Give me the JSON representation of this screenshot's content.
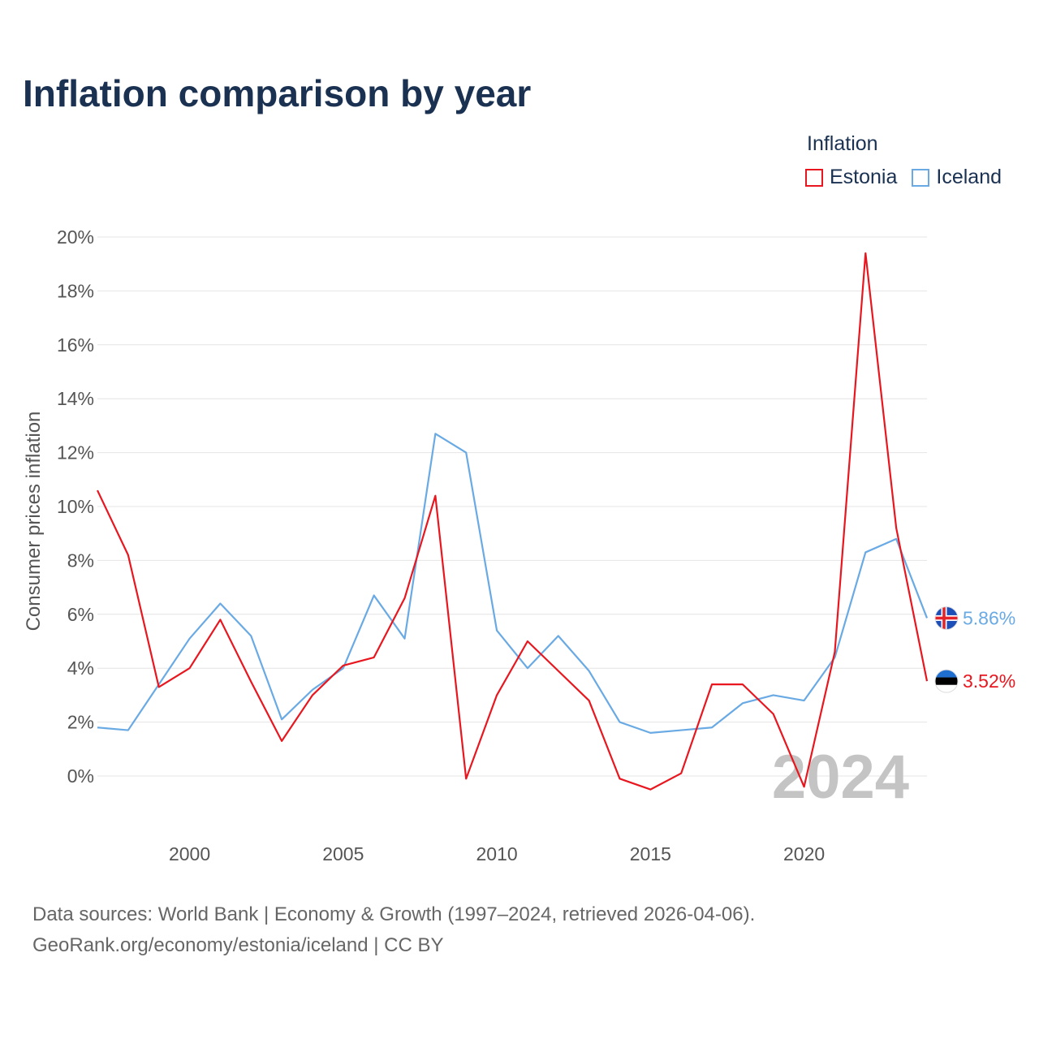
{
  "title": "Inflation comparison by year",
  "legend": {
    "title": "Inflation",
    "items": [
      {
        "label": "Estonia",
        "color": "#e8171f"
      },
      {
        "label": "Iceland",
        "color": "#6aaae4"
      }
    ]
  },
  "source": {
    "line1": "Data sources: World Bank | Economy & Growth (1997–2024, retrieved 2026-04-06).",
    "line2": "GeoRank.org/economy/estonia/iceland | CC BY"
  },
  "chart_data": {
    "type": "line",
    "title": "Inflation comparison by year",
    "xlabel": "",
    "ylabel": "Consumer prices inflation",
    "x": [
      1997,
      1998,
      1999,
      2000,
      2001,
      2002,
      2003,
      2004,
      2005,
      2006,
      2007,
      2008,
      2009,
      2010,
      2011,
      2012,
      2013,
      2014,
      2015,
      2016,
      2017,
      2018,
      2019,
      2020,
      2021,
      2022,
      2023,
      2024
    ],
    "xlim": [
      1997,
      2024
    ],
    "ylim": [
      -2,
      20
    ],
    "xticks": [
      2000,
      2005,
      2010,
      2015,
      2020
    ],
    "yticks": [
      0,
      2,
      4,
      6,
      8,
      10,
      12,
      14,
      16,
      18,
      20
    ],
    "ytick_labels": [
      "0%",
      "2%",
      "4%",
      "6%",
      "8%",
      "10%",
      "12%",
      "14%",
      "16%",
      "18%",
      "20%"
    ],
    "grid": true,
    "year_watermark": "2024",
    "series": [
      {
        "name": "Estonia",
        "color": "#e8171f",
        "values": [
          10.6,
          8.2,
          3.3,
          4.0,
          5.8,
          3.5,
          1.3,
          3.0,
          4.1,
          4.4,
          6.6,
          10.4,
          -0.1,
          3.0,
          5.0,
          3.9,
          2.8,
          -0.1,
          -0.5,
          0.1,
          3.4,
          3.4,
          2.3,
          -0.4,
          4.6,
          19.4,
          9.2,
          3.52
        ],
        "end_label": "3.52%"
      },
      {
        "name": "Iceland",
        "color": "#6aaae4",
        "values": [
          1.8,
          1.7,
          3.4,
          5.1,
          6.4,
          5.2,
          2.1,
          3.2,
          4.0,
          6.7,
          5.1,
          12.7,
          12.0,
          5.4,
          4.0,
          5.2,
          3.9,
          2.0,
          1.6,
          1.7,
          1.8,
          2.7,
          3.0,
          2.8,
          4.4,
          8.3,
          8.8,
          5.86
        ],
        "end_label": "5.86%"
      }
    ]
  }
}
